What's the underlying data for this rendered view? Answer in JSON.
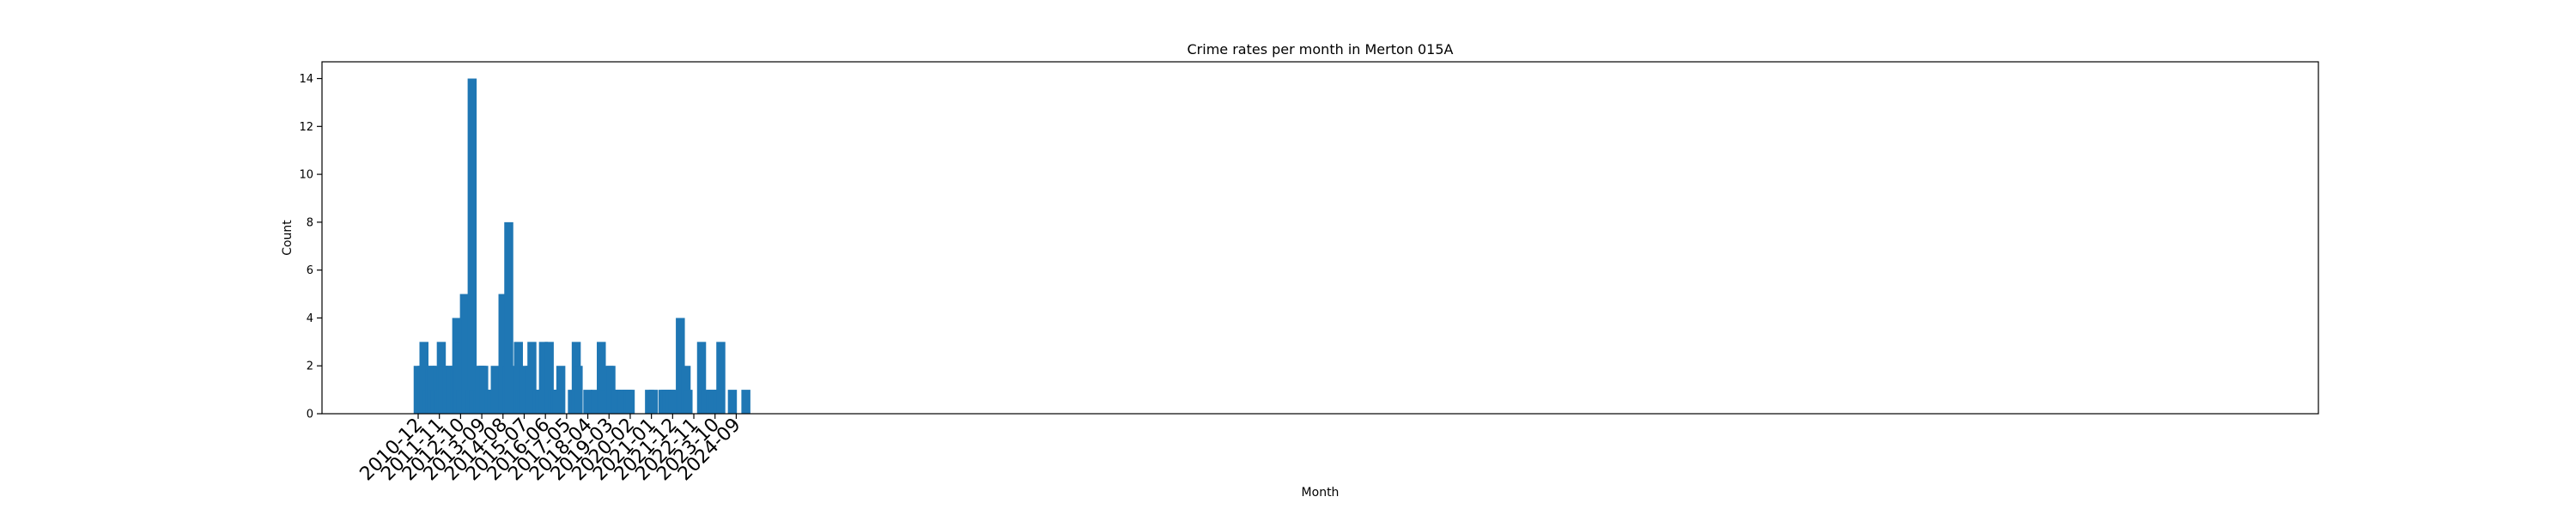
{
  "chart_data": {
    "type": "bar",
    "title": "Crime rates per month in Merton 015A",
    "xlabel": "Month",
    "ylabel": "Count",
    "ylim": [
      0,
      14.7
    ],
    "yticks": [
      0,
      2,
      4,
      6,
      8,
      10,
      12,
      14
    ],
    "xticks": [
      "2010-12",
      "2011-11",
      "2012-10",
      "2013-09",
      "2014-08",
      "2015-07",
      "2016-06",
      "2017-05",
      "2018-04",
      "2019-03",
      "2020-02",
      "2021-01",
      "2021-12",
      "2022-11",
      "2023-10",
      "2024-09"
    ],
    "grid": false,
    "series": [
      {
        "values": [
          [
            "2010-12",
            2
          ],
          [
            "2011-01",
            1
          ],
          [
            "2011-02",
            2
          ],
          [
            "2011-03",
            3
          ],
          [
            "2011-05",
            1
          ],
          [
            "2011-06",
            2
          ],
          [
            "2011-07",
            2
          ],
          [
            "2011-08",
            1
          ],
          [
            "2011-09",
            1
          ],
          [
            "2011-10",
            2
          ],
          [
            "2011-11",
            1
          ],
          [
            "2011-12",
            3
          ],
          [
            "2012-01",
            2
          ],
          [
            "2012-03",
            2
          ],
          [
            "2012-05",
            2
          ],
          [
            "2012-07",
            2
          ],
          [
            "2012-08",
            4
          ],
          [
            "2012-09",
            3
          ],
          [
            "2012-10",
            1
          ],
          [
            "2012-12",
            5
          ],
          [
            "2013-01",
            4
          ],
          [
            "2013-03",
            1
          ],
          [
            "2013-04",
            14
          ],
          [
            "2013-05",
            1
          ],
          [
            "2013-07",
            1
          ],
          [
            "2013-08",
            2
          ],
          [
            "2013-09",
            2
          ],
          [
            "2013-10",
            2
          ],
          [
            "2014-01",
            1
          ],
          [
            "2014-02",
            1
          ],
          [
            "2014-04",
            2
          ],
          [
            "2014-08",
            5
          ],
          [
            "2014-10",
            2
          ],
          [
            "2014-11",
            8
          ],
          [
            "2015-02",
            2
          ],
          [
            "2015-04",
            3
          ],
          [
            "2015-05",
            1
          ],
          [
            "2015-06",
            1
          ],
          [
            "2015-07",
            2
          ],
          [
            "2015-10",
            2
          ],
          [
            "2015-11",
            3
          ],
          [
            "2016-02",
            1
          ],
          [
            "2016-03",
            1
          ],
          [
            "2016-05",
            3
          ],
          [
            "2016-08",
            3
          ],
          [
            "2016-10",
            1
          ],
          [
            "2016-11",
            1
          ],
          [
            "2016-12",
            1
          ],
          [
            "2017-02",
            2
          ],
          [
            "2017-08",
            1
          ],
          [
            "2017-10",
            3
          ],
          [
            "2017-11",
            2
          ],
          [
            "2018-04",
            1
          ],
          [
            "2018-08",
            1
          ],
          [
            "2018-11",
            3
          ],
          [
            "2018-12",
            1
          ],
          [
            "2019-03",
            2
          ],
          [
            "2019-04",
            2
          ],
          [
            "2019-05",
            1
          ],
          [
            "2019-06",
            1
          ],
          [
            "2019-07",
            1
          ],
          [
            "2019-09",
            1
          ],
          [
            "2019-10",
            1
          ],
          [
            "2019-12",
            1
          ],
          [
            "2020-01",
            1
          ],
          [
            "2020-02",
            1
          ],
          [
            "2020-12",
            1
          ],
          [
            "2021-02",
            1
          ],
          [
            "2021-07",
            1
          ],
          [
            "2021-08",
            1
          ],
          [
            "2021-09",
            1
          ],
          [
            "2021-11",
            1
          ],
          [
            "2021-12",
            1
          ],
          [
            "2022-04",
            4
          ],
          [
            "2022-05",
            1
          ],
          [
            "2022-07",
            2
          ],
          [
            "2022-08",
            1
          ],
          [
            "2023-03",
            3
          ],
          [
            "2023-05",
            1
          ],
          [
            "2023-08",
            1
          ],
          [
            "2023-09",
            1
          ],
          [
            "2023-12",
            1
          ],
          [
            "2024-01",
            3
          ],
          [
            "2024-07",
            1
          ],
          [
            "2025-02",
            1
          ]
        ]
      }
    ]
  }
}
